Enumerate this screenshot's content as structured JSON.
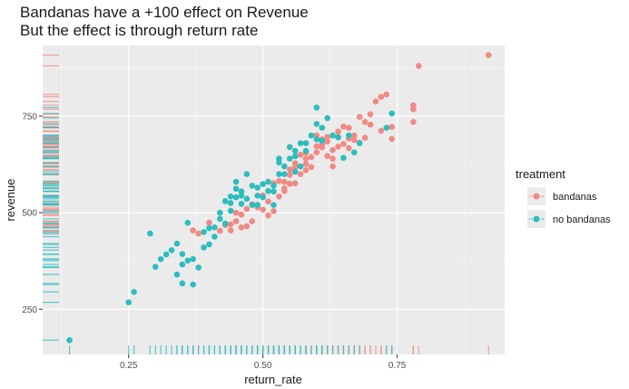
{
  "chart_data": {
    "type": "scatter",
    "title": "Bandanas have a +100 effect on Revenue",
    "subtitle": "But the effect is through return rate",
    "xlabel": "return_rate",
    "ylabel": "revenue",
    "xlim": [
      0.09,
      0.95
    ],
    "ylim": [
      133,
      933
    ],
    "x_ticks": [
      0.25,
      0.5,
      0.75
    ],
    "x_tick_labels": [
      "0.25",
      "0.50",
      "0.75"
    ],
    "y_ticks": [
      250,
      500,
      750
    ],
    "y_tick_labels": [
      "250",
      "500",
      "750"
    ],
    "grid": true,
    "legend": {
      "title": "treatment",
      "position": "right",
      "entries": [
        "bandanas",
        "no bandanas"
      ]
    },
    "marginal_rugs": true,
    "series": [
      {
        "name": "bandanas",
        "color": "#f08a84",
        "points": [
          [
            0.37,
            454
          ],
          [
            0.38,
            446
          ],
          [
            0.4,
            474
          ],
          [
            0.42,
            453
          ],
          [
            0.43,
            468
          ],
          [
            0.44,
            454
          ],
          [
            0.45,
            478
          ],
          [
            0.46,
            462
          ],
          [
            0.47,
            465
          ],
          [
            0.48,
            478
          ],
          [
            0.49,
            520
          ],
          [
            0.5,
            508
          ],
          [
            0.51,
            493
          ],
          [
            0.52,
            504
          ],
          [
            0.53,
            542
          ],
          [
            0.54,
            556
          ],
          [
            0.55,
            575
          ],
          [
            0.56,
            576
          ],
          [
            0.57,
            600
          ],
          [
            0.55,
            612
          ],
          [
            0.58,
            626
          ],
          [
            0.59,
            644
          ],
          [
            0.6,
            672
          ],
          [
            0.61,
            690
          ],
          [
            0.62,
            696
          ],
          [
            0.62,
            647
          ],
          [
            0.63,
            662
          ],
          [
            0.64,
            671
          ],
          [
            0.64,
            710
          ],
          [
            0.65,
            723
          ],
          [
            0.66,
            692
          ],
          [
            0.66,
            667
          ],
          [
            0.67,
            688
          ],
          [
            0.68,
            681
          ],
          [
            0.69,
            735
          ],
          [
            0.7,
            755
          ],
          [
            0.71,
            788
          ],
          [
            0.72,
            800
          ],
          [
            0.73,
            806
          ],
          [
            0.74,
            722
          ],
          [
            0.74,
            691
          ],
          [
            0.78,
            778
          ],
          [
            0.78,
            768
          ],
          [
            0.78,
            735
          ],
          [
            0.79,
            880
          ],
          [
            0.52,
            576
          ],
          [
            0.54,
            580
          ],
          [
            0.48,
            522
          ],
          [
            0.6,
            656
          ],
          [
            0.63,
            640
          ],
          [
            0.56,
            618
          ],
          [
            0.58,
            655
          ],
          [
            0.59,
            618
          ],
          [
            0.61,
            676
          ],
          [
            0.65,
            678
          ],
          [
            0.67,
            700
          ],
          [
            0.69,
            694
          ],
          [
            0.72,
            712
          ],
          [
            0.6,
            700
          ],
          [
            0.57,
            650
          ],
          [
            0.53,
            582
          ],
          [
            0.5,
            545
          ],
          [
            0.45,
            500
          ],
          [
            0.47,
            510
          ],
          [
            0.62,
            684
          ],
          [
            0.64,
            696
          ],
          [
            0.66,
            720
          ],
          [
            0.63,
            620
          ],
          [
            0.55,
            598
          ],
          [
            0.58,
            610
          ],
          [
            0.44,
            470
          ],
          [
            0.46,
            495
          ],
          [
            0.51,
            529
          ],
          [
            0.49,
            514
          ],
          [
            0.56,
            628
          ],
          [
            0.68,
            748
          ],
          [
            0.7,
            728
          ],
          [
            0.92,
            908
          ],
          [
            0.61,
            669
          ],
          [
            0.58,
            640
          ],
          [
            0.54,
            563
          ]
        ]
      },
      {
        "name": "no bandanas",
        "color": "#2dbdbd",
        "points": [
          [
            0.14,
            170
          ],
          [
            0.25,
            268
          ],
          [
            0.26,
            295
          ],
          [
            0.29,
            446
          ],
          [
            0.3,
            360
          ],
          [
            0.31,
            380
          ],
          [
            0.32,
            392
          ],
          [
            0.33,
            403
          ],
          [
            0.34,
            340
          ],
          [
            0.34,
            420
          ],
          [
            0.35,
            317
          ],
          [
            0.35,
            393
          ],
          [
            0.36,
            376
          ],
          [
            0.36,
            474
          ],
          [
            0.37,
            380
          ],
          [
            0.37,
            314
          ],
          [
            0.38,
            358
          ],
          [
            0.39,
            410
          ],
          [
            0.4,
            418
          ],
          [
            0.41,
            438
          ],
          [
            0.41,
            462
          ],
          [
            0.42,
            484
          ],
          [
            0.43,
            472
          ],
          [
            0.43,
            530
          ],
          [
            0.44,
            505
          ],
          [
            0.44,
            525
          ],
          [
            0.45,
            580
          ],
          [
            0.45,
            562
          ],
          [
            0.46,
            555
          ],
          [
            0.46,
            523
          ],
          [
            0.47,
            536
          ],
          [
            0.48,
            520
          ],
          [
            0.49,
            565
          ],
          [
            0.49,
            544
          ],
          [
            0.5,
            540
          ],
          [
            0.51,
            556
          ],
          [
            0.52,
            570
          ],
          [
            0.52,
            520
          ],
          [
            0.53,
            600
          ],
          [
            0.53,
            630
          ],
          [
            0.54,
            620
          ],
          [
            0.54,
            600
          ],
          [
            0.55,
            670
          ],
          [
            0.55,
            640
          ],
          [
            0.56,
            646
          ],
          [
            0.56,
            606
          ],
          [
            0.57,
            680
          ],
          [
            0.57,
            620
          ],
          [
            0.58,
            660
          ],
          [
            0.59,
            700
          ],
          [
            0.6,
            690
          ],
          [
            0.6,
            730
          ],
          [
            0.61,
            686
          ],
          [
            0.61,
            720
          ],
          [
            0.62,
            745
          ],
          [
            0.63,
            700
          ],
          [
            0.64,
            695
          ],
          [
            0.65,
            642
          ],
          [
            0.66,
            700
          ],
          [
            0.67,
            656
          ],
          [
            0.68,
            680
          ],
          [
            0.73,
            720
          ],
          [
            0.74,
            757
          ],
          [
            0.6,
            772
          ],
          [
            0.44,
            542
          ],
          [
            0.47,
            600
          ],
          [
            0.5,
            574
          ],
          [
            0.51,
            580
          ],
          [
            0.4,
            460
          ],
          [
            0.39,
            450
          ],
          [
            0.35,
            366
          ],
          [
            0.42,
            500
          ],
          [
            0.45,
            540
          ],
          [
            0.48,
            570
          ],
          [
            0.53,
            640
          ],
          [
            0.56,
            660
          ],
          [
            0.58,
            680
          ],
          [
            0.46,
            544
          ],
          [
            0.49,
            520
          ],
          [
            0.52,
            555
          ]
        ]
      }
    ]
  }
}
